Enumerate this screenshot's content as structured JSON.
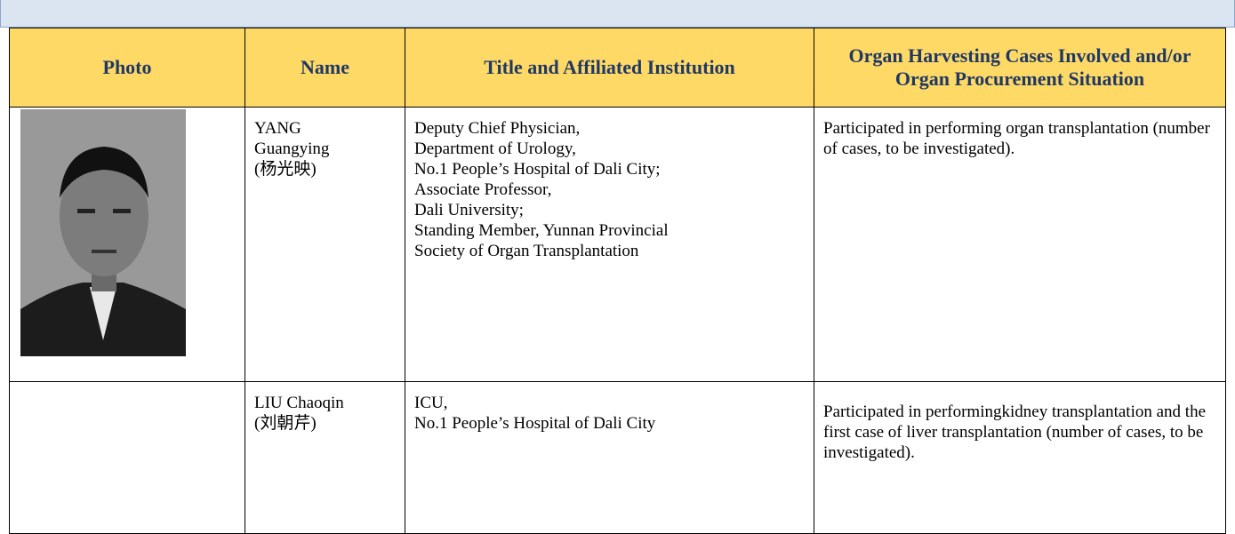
{
  "table": {
    "header": [
      "Photo",
      "Name",
      "Title and Affiliated Institution",
      "Organ Harvesting Cases Involved and/or Organ Procurement Situation"
    ],
    "rows": [
      {
        "name": [
          "YANG",
          "Guangying",
          "(杨光映)"
        ],
        "title": [
          "Deputy Chief Physician,",
          "Department of Urology,",
          "No.1 People’s Hospital of Dali City;",
          "Associate Professor,",
          "Dali University;",
          "Standing Member, Yunnan Provincial",
          "Society of Organ Transplantation"
        ],
        "cases": "Participated in performing organ transplantation (number of cases, to be investigated)."
      },
      {
        "name": [
          "LIU Chaoqin",
          "(刘朝芹)"
        ],
        "title": [
          "ICU,",
          "No.1 People’s Hospital of Dali City"
        ],
        "cases": "Participated in performingkidney transplantation and the first case of liver transplantation (number of cases, to be investigated)."
      }
    ]
  }
}
